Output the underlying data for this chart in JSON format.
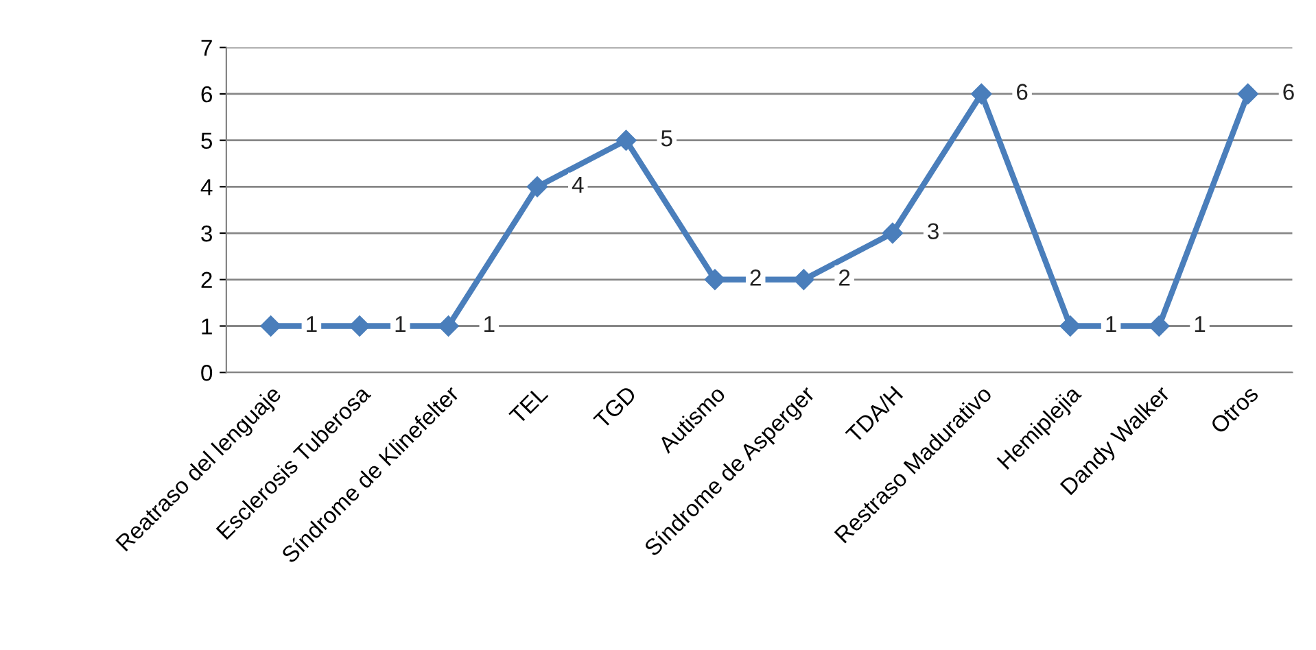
{
  "chart_data": {
    "type": "line",
    "categories": [
      "Reatraso del lenguaje",
      "Esclerosis Tuberosa",
      "Síndrome de Klinefelter",
      "TEL",
      "TGD",
      "Autismo",
      "Síndrome de Asperger",
      "TDA/H",
      "Restraso Madurativo",
      "Hemiplejia",
      "Dandy Walker",
      "Otros"
    ],
    "series": [
      {
        "color": "#4a7ebb",
        "values": [
          1,
          1,
          1,
          4,
          5,
          2,
          2,
          3,
          6,
          1,
          1,
          6
        ]
      }
    ],
    "ylim": [
      0,
      7
    ],
    "yticks": [
      0,
      1,
      2,
      3,
      4,
      5,
      6,
      7
    ],
    "grid": "y",
    "marker": "diamond",
    "line_style": "solid",
    "data_labels": true,
    "legend": false
  }
}
